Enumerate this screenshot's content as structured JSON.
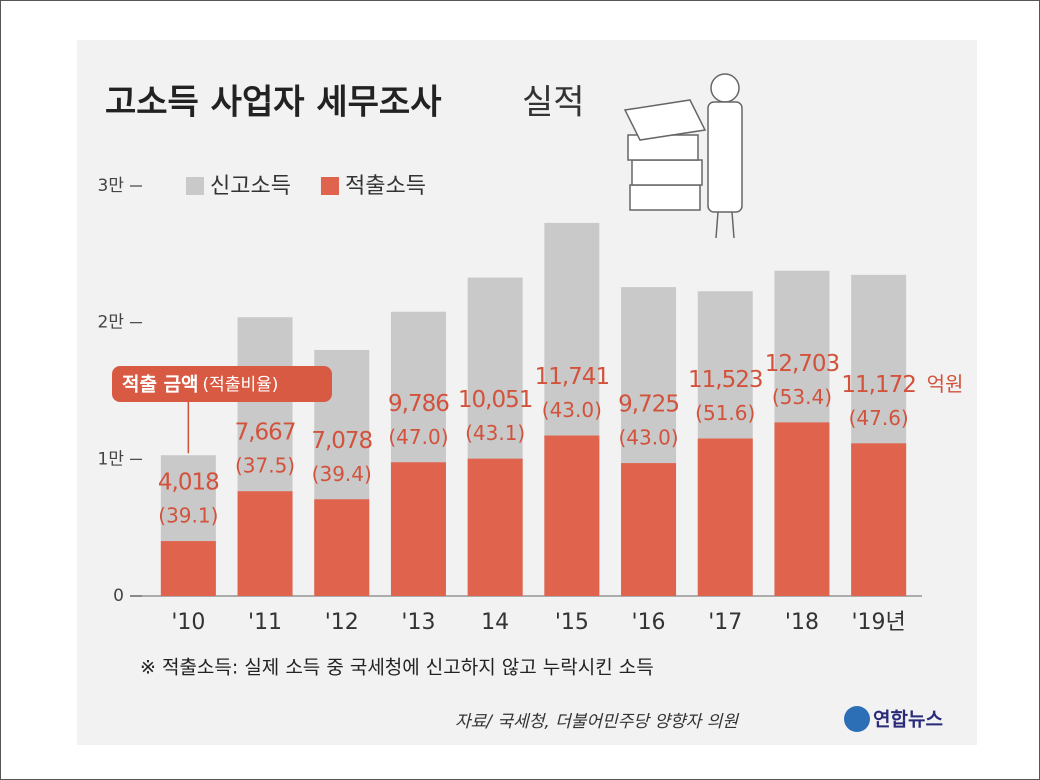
{
  "chart_data": {
    "type": "overlap_bar",
    "title": "고소득 사업자 세무조사",
    "title_suffix": "실적",
    "categories": [
      "'10",
      "'11",
      "'12",
      "'13",
      "14",
      "'15",
      "'16",
      "'17",
      "'18",
      "'19년"
    ],
    "series": [
      {
        "name": "신고소득",
        "color": "#c9c9c9",
        "values": [
          10300,
          20400,
          18000,
          20800,
          23300,
          27300,
          22600,
          22300,
          23800,
          23500
        ]
      },
      {
        "name": "적출소득",
        "color": "#e0644d",
        "values": [
          4018,
          7667,
          7078,
          9786,
          10051,
          11741,
          9725,
          11523,
          12703,
          11172
        ],
        "value_labels": [
          "4,018",
          "7,667",
          "7,078",
          "9,786",
          "10,051",
          "11,741",
          "9,725",
          "11,523",
          "12,703",
          "11,172"
        ]
      }
    ],
    "ratios": {
      "values": [
        39.1,
        37.5,
        39.4,
        47.0,
        43.1,
        43.0,
        43.0,
        51.6,
        53.4,
        47.6
      ],
      "value_labels": [
        "(39.1)",
        "(37.5)",
        "(39.4)",
        "(47.0)",
        "(43.1)",
        "(43.0)",
        "(43.0)",
        "(51.6)",
        "(53.4)",
        "(47.6)"
      ]
    },
    "label_color": "#d2523c",
    "unit": "억원",
    "callout": {
      "amount": "적출 금액",
      "ratio": "(적출비율)"
    },
    "ylim": [
      0,
      30000
    ],
    "yticks": [
      0,
      {
        "value": 10000,
        "label": "1만"
      },
      {
        "value": 20000,
        "label": "2만"
      },
      {
        "value": 30000,
        "label": "3만"
      }
    ],
    "footnote": "※ 적출소득: 실제 소득 중 국세청에 신고하지 않고 누락시킨 소득",
    "source": "자료/ 국세청, 더불어민주당 양향자 의원",
    "logo": "연합뉴스"
  }
}
